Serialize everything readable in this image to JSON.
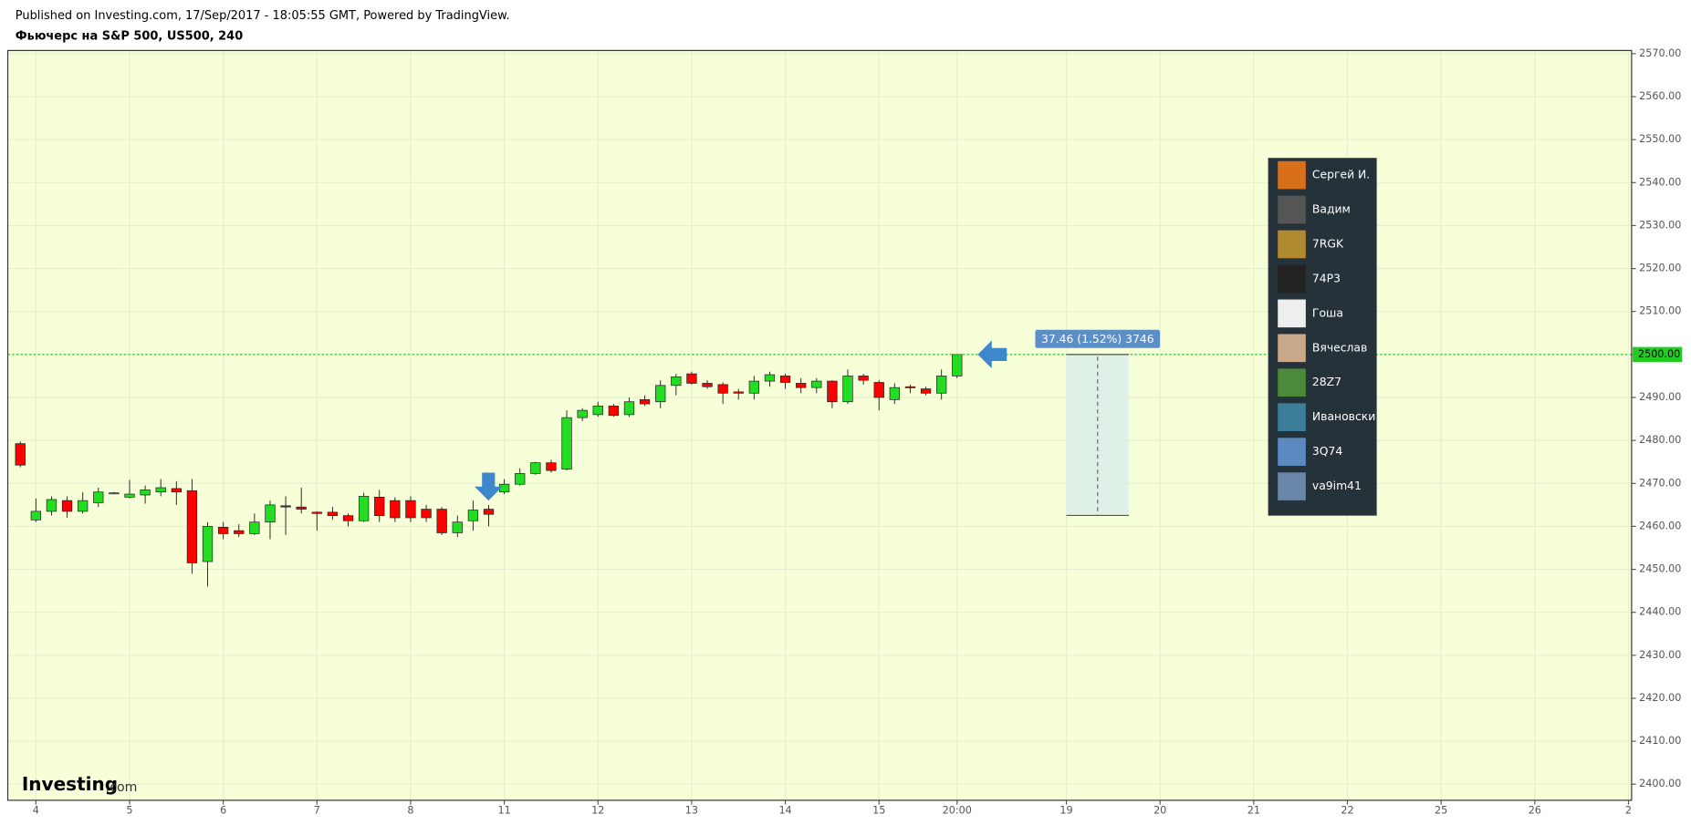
{
  "header": {
    "published": "Published on Investing.com, 17/Sep/2017 - 18:05:55 GMT, Powered by TradingView.",
    "symbol": "Фьючерс на S&P 500, US500, 240"
  },
  "chart_data": {
    "type": "candlestick",
    "up_color": "#22dd22",
    "down_color": "#ff0000",
    "background": "#f7ffd9",
    "grid": true,
    "open": [
      2479.25,
      2461.5,
      2463.5,
      2466,
      2463.5,
      2465.5,
      2467.8,
      2466.8,
      2467.3,
      2468,
      2468.8,
      2468.3,
      2451.8,
      2459.8,
      2459,
      2458.3,
      2461,
      2464.8,
      2464.5,
      2463.3,
      2463.3,
      2462.5,
      2461.3,
      2466.8,
      2466,
      2466,
      2464,
      2464,
      2458.5,
      2461.3,
      2464,
      2468,
      2469.8,
      2472.3,
      2474.8,
      2473.3,
      2485.3,
      2486,
      2488,
      2486,
      2489.5,
      2489,
      2492.8,
      2495.5,
      2493.3,
      2493,
      2491.3,
      2491,
      2493.8,
      2495,
      2493.3,
      2492.3,
      2493.8,
      2489,
      2495,
      2493.5,
      2489.5,
      2492.5,
      2492,
      2491,
      2495
    ],
    "high": [
      2479.75,
      2466.5,
      2467,
      2467,
      2468,
      2469,
      2468,
      2470.8,
      2469.5,
      2471,
      2470.5,
      2471,
      2461,
      2461,
      2460.5,
      2463,
      2466,
      2467,
      2469,
      2463.5,
      2464.5,
      2463,
      2467.8,
      2468.5,
      2466.8,
      2467,
      2465,
      2464.5,
      2462.5,
      2466,
      2465,
      2471,
      2473.5,
      2475,
      2475.5,
      2487,
      2487.5,
      2489,
      2488.5,
      2490,
      2490.5,
      2494,
      2495.5,
      2496,
      2494,
      2493.5,
      2492,
      2495,
      2496,
      2495.5,
      2494.5,
      2494.5,
      2494,
      2496.5,
      2495.5,
      2494,
      2493.3,
      2493,
      2492.5,
      2496.5,
      2500
    ],
    "low": [
      2473.75,
      2461,
      2462.5,
      2462,
      2463,
      2464.5,
      2467.5,
      2466.5,
      2465.3,
      2467,
      2465,
      2449,
      2446,
      2457,
      2457.5,
      2458,
      2457,
      2458,
      2463,
      2459,
      2461.5,
      2460,
      2461,
      2461,
      2461,
      2461,
      2461,
      2458,
      2457.5,
      2459,
      2460,
      2467.5,
      2469.5,
      2472,
      2472.5,
      2473,
      2484.5,
      2485.5,
      2485.5,
      2485.5,
      2488,
      2487.5,
      2490.5,
      2493,
      2492,
      2488.5,
      2489.5,
      2489.5,
      2492.5,
      2492,
      2491,
      2491,
      2487.5,
      2488.5,
      2493,
      2487,
      2488.5,
      2491,
      2490.5,
      2489.5,
      2494.5
    ],
    "close": [
      2474.25,
      2463.5,
      2466.25,
      2463.5,
      2466,
      2468,
      2467.8,
      2467.5,
      2468.5,
      2469,
      2468,
      2451.5,
      2460,
      2458.3,
      2458.3,
      2461,
      2465,
      2464.5,
      2464,
      2463,
      2462.5,
      2461.3,
      2467,
      2462.5,
      2462,
      2462,
      2462,
      2458.5,
      2461,
      2463.8,
      2462.8,
      2469.8,
      2472.3,
      2474.8,
      2473,
      2485.3,
      2487,
      2488,
      2485.8,
      2489,
      2488.5,
      2492.8,
      2494.8,
      2493.3,
      2492.5,
      2491,
      2491,
      2493.8,
      2495.3,
      2493.5,
      2492.3,
      2493.8,
      2489,
      2495,
      2494,
      2490,
      2492.3,
      2492.3,
      2491,
      2495,
      2500
    ],
    "xlim": [
      -0.8,
      103.2
    ],
    "xticks": [
      {
        "value": 1,
        "label": "4"
      },
      {
        "value": 7,
        "label": "5"
      },
      {
        "value": 13,
        "label": "6"
      },
      {
        "value": 19,
        "label": "7"
      },
      {
        "value": 25,
        "label": "8"
      },
      {
        "value": 31,
        "label": "11"
      },
      {
        "value": 37,
        "label": "12"
      },
      {
        "value": 43,
        "label": "13"
      },
      {
        "value": 49,
        "label": "14"
      },
      {
        "value": 55,
        "label": "15"
      },
      {
        "value": 60,
        "label": "20:00"
      },
      {
        "value": 67,
        "label": "19"
      },
      {
        "value": 73,
        "label": "20"
      },
      {
        "value": 79,
        "label": "21"
      },
      {
        "value": 85,
        "label": "22"
      },
      {
        "value": 91,
        "label": "25"
      },
      {
        "value": 97,
        "label": "26"
      },
      {
        "value": 103,
        "label": "2"
      }
    ],
    "ylim": [
      2396.25,
      2570.75
    ],
    "yticks": [
      {
        "value": 2400,
        "label": "2400.00"
      },
      {
        "value": 2410,
        "label": "2410.00"
      },
      {
        "value": 2420,
        "label": "2420.00"
      },
      {
        "value": 2430,
        "label": "2430.00"
      },
      {
        "value": 2440,
        "label": "2440.00"
      },
      {
        "value": 2450,
        "label": "2450.00"
      },
      {
        "value": 2460,
        "label": "2460.00"
      },
      {
        "value": 2470,
        "label": "2470.00"
      },
      {
        "value": 2480,
        "label": "2480.00"
      },
      {
        "value": 2490,
        "label": "2490.00"
      },
      {
        "value": 2500,
        "label": "2500.00"
      },
      {
        "value": 2510,
        "label": "2510.00"
      },
      {
        "value": 2520,
        "label": "2520.00"
      },
      {
        "value": 2530,
        "label": "2530.00"
      },
      {
        "value": 2540,
        "label": "2540.00"
      },
      {
        "value": 2550,
        "label": "2550.00"
      },
      {
        "value": 2560,
        "label": "2560.00"
      },
      {
        "value": 2570,
        "label": "2570.00"
      }
    ],
    "last_price": {
      "value": 2500,
      "label": "2500.00",
      "color": "#22cc22"
    },
    "measure": {
      "label": "37.46 (1.52%) 3746",
      "top": 2500,
      "bottom": 2462.54,
      "start": 67,
      "end": 71
    },
    "watchers": [
      "Сергей И.",
      "Вадим",
      "7RGK",
      "74P3",
      "Гоша",
      "Вячеслав",
      "28Z7",
      "Ивановски",
      "3Q74",
      "va9im41"
    ],
    "logo": {
      "brand": "Investing",
      "suffix": ".com"
    }
  }
}
